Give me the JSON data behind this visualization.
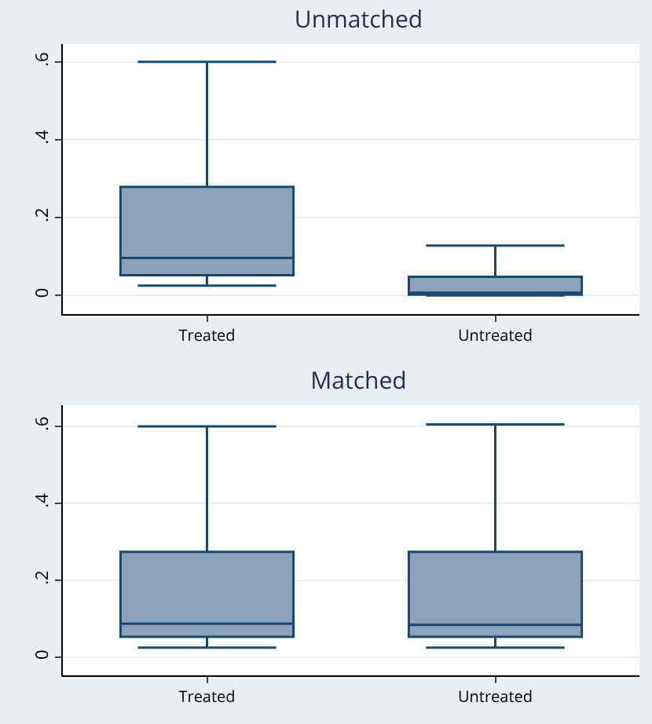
{
  "chart_data": [
    {
      "type": "box",
      "title": "Unmatched",
      "categories": [
        "Treated",
        "Untreated"
      ],
      "color": "#8ca2b8",
      "boxes": [
        {
          "low": 0.025,
          "q1": 0.052,
          "median": 0.096,
          "q3": 0.279,
          "high": 0.6
        },
        {
          "low": 0,
          "q1": 0.002,
          "median": 0.007,
          "q3": 0.048,
          "high": 0.128
        }
      ],
      "ylim": [
        -0.048,
        0.646
      ],
      "yticks": [
        {
          "value": 0,
          "label": "0"
        },
        {
          "value": 0.2,
          "label": ".2"
        },
        {
          "value": 0.4,
          "label": ".4"
        },
        {
          "value": 0.6,
          "label": ".6"
        }
      ],
      "grid": "y"
    },
    {
      "type": "box",
      "title": "Matched",
      "categories": [
        "Treated",
        "Untreated"
      ],
      "color": "#8ca2b8",
      "boxes": [
        {
          "low": 0.025,
          "q1": 0.053,
          "median": 0.087,
          "q3": 0.274,
          "high": 0.6
        },
        {
          "low": 0.025,
          "q1": 0.053,
          "median": 0.084,
          "q3": 0.274,
          "high": 0.605
        }
      ],
      "ylim": [
        -0.047,
        0.655
      ],
      "yticks": [
        {
          "value": 0,
          "label": "0"
        },
        {
          "value": 0.2,
          "label": ".2"
        },
        {
          "value": 0.4,
          "label": ".4"
        },
        {
          "value": 0.6,
          "label": ".6"
        }
      ],
      "grid": "y"
    }
  ]
}
